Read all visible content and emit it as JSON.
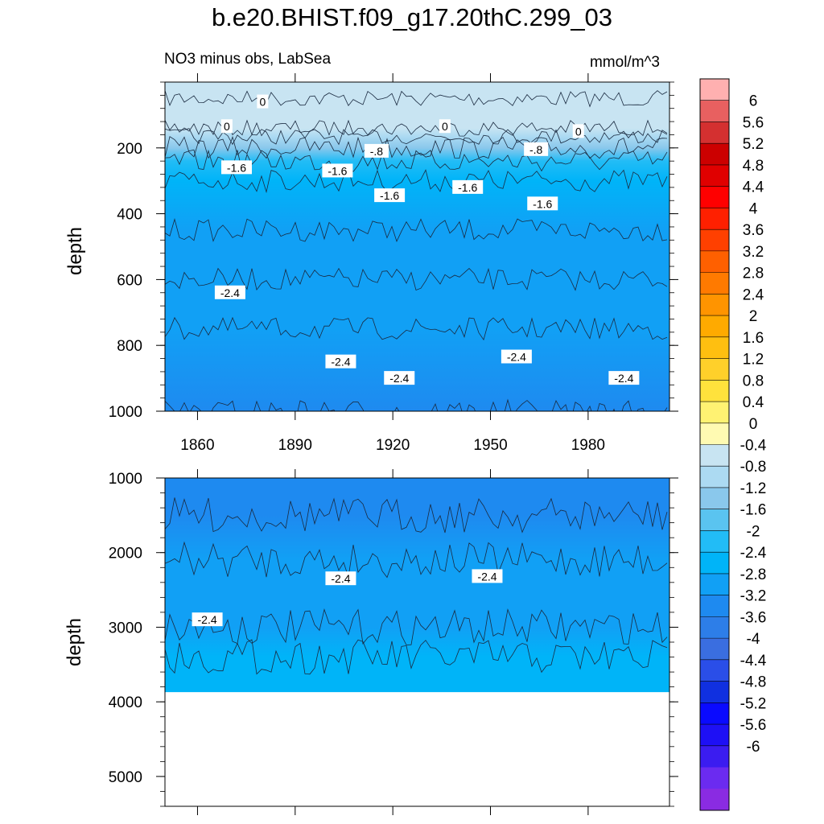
{
  "title": "b.e20.BHIST.f09_g17.20thC.299_03",
  "subtitle": "NO3 minus obs, LabSea",
  "units": "mmol/m^3",
  "colors": {
    "levels": [
      "#8a2be2",
      "#6b2bf0",
      "#3b1cf0",
      "#1e10f5",
      "#0a0aff",
      "#1030e0",
      "#2a4ee8",
      "#3a6ee0",
      "#2d7ee8",
      "#1e8af0",
      "#11a0f5",
      "#00b4f8",
      "#22bcf6",
      "#5ac4f0",
      "#8ac8ec",
      "#acdaf2",
      "#c8e4f2",
      "#fffab2",
      "#fff272",
      "#ffe23c",
      "#ffd02a",
      "#ffbf10",
      "#ffaa00",
      "#ff9400",
      "#ff7a00",
      "#ff6000",
      "#ff4000",
      "#ff2000",
      "#ff0000",
      "#e00000",
      "#cc0000",
      "#d43030",
      "#e86060",
      "#ffb0b0"
    ]
  },
  "chart_data": [
    {
      "type": "heatmap",
      "panel": "top",
      "ylabel": "depth",
      "xlabel": "",
      "xlim": [
        1850,
        2005
      ],
      "ylim": [
        0,
        1000
      ],
      "y_reversed": true,
      "x_ticks": [
        "1860",
        "1890",
        "1920",
        "1950",
        "1980"
      ],
      "y_ticks": [
        "200",
        "400",
        "600",
        "800",
        "1000"
      ],
      "depth_profile": [
        {
          "depth": 5,
          "value": 0.3
        },
        {
          "depth": 50,
          "value": 0.3
        },
        {
          "depth": 140,
          "value": 0.1
        },
        {
          "depth": 165,
          "value": -0.3
        },
        {
          "depth": 200,
          "value": -0.8
        },
        {
          "depth": 240,
          "value": -1.4
        },
        {
          "depth": 300,
          "value": -1.8
        },
        {
          "depth": 450,
          "value": -2.1
        },
        {
          "depth": 600,
          "value": -2.2
        },
        {
          "depth": 750,
          "value": -2.4
        },
        {
          "depth": 1000,
          "value": -2.6
        }
      ],
      "contour_labels": [
        {
          "text": "0",
          "x": 1880,
          "y": 60
        },
        {
          "text": "0",
          "x": 1869,
          "y": 135
        },
        {
          "text": "0",
          "x": 1936,
          "y": 135
        },
        {
          "text": "0",
          "x": 1977,
          "y": 150
        },
        {
          "text": "-.8",
          "x": 1915,
          "y": 210
        },
        {
          "text": "-.8",
          "x": 1964,
          "y": 205
        },
        {
          "text": "-1.6",
          "x": 1872,
          "y": 260
        },
        {
          "text": "-1.6",
          "x": 1903,
          "y": 270
        },
        {
          "text": "-1.6",
          "x": 1919,
          "y": 345
        },
        {
          "text": "-1.6",
          "x": 1943,
          "y": 320
        },
        {
          "text": "-1.6",
          "x": 1966,
          "y": 370
        },
        {
          "text": "-2.4",
          "x": 1870,
          "y": 640
        },
        {
          "text": "-2.4",
          "x": 1904,
          "y": 850
        },
        {
          "text": "-2.4",
          "x": 1922,
          "y": 900
        },
        {
          "text": "-2.4",
          "x": 1958,
          "y": 835
        },
        {
          "text": "-2.4",
          "x": 1991,
          "y": 900
        }
      ]
    },
    {
      "type": "heatmap",
      "panel": "bottom",
      "ylabel": "depth",
      "xlabel": "",
      "xlim": [
        1850,
        2005
      ],
      "ylim": [
        1000,
        5400
      ],
      "y_reversed": true,
      "data_floor_depth": 3870,
      "y_ticks": [
        "1000",
        "2000",
        "3000",
        "4000",
        "5000"
      ],
      "depth_profile": [
        {
          "depth": 1000,
          "value": -2.7
        },
        {
          "depth": 1500,
          "value": -2.6
        },
        {
          "depth": 2100,
          "value": -2.4
        },
        {
          "depth": 3000,
          "value": -2.2
        },
        {
          "depth": 3400,
          "value": -1.9
        },
        {
          "depth": 3870,
          "value": -1.9
        }
      ],
      "contour_labels": [
        {
          "text": "-2.4",
          "x": 1904,
          "y": 2350
        },
        {
          "text": "-2.4",
          "x": 1949,
          "y": 2320
        },
        {
          "text": "-2.4",
          "x": 1863,
          "y": 2900
        }
      ]
    }
  ],
  "colorbar": {
    "labels": [
      "6",
      "5.6",
      "5.2",
      "4.8",
      "4.4",
      "4",
      "3.6",
      "3.2",
      "2.8",
      "2.4",
      "2",
      "1.6",
      "1.2",
      "0.8",
      "0.4",
      "0",
      "-0.4",
      "-0.8",
      "-1.2",
      "-1.6",
      "-2",
      "-2.4",
      "-2.8",
      "-3.2",
      "-3.6",
      "-4",
      "-4.4",
      "-4.8",
      "-5.2",
      "-5.6",
      "-6"
    ]
  }
}
